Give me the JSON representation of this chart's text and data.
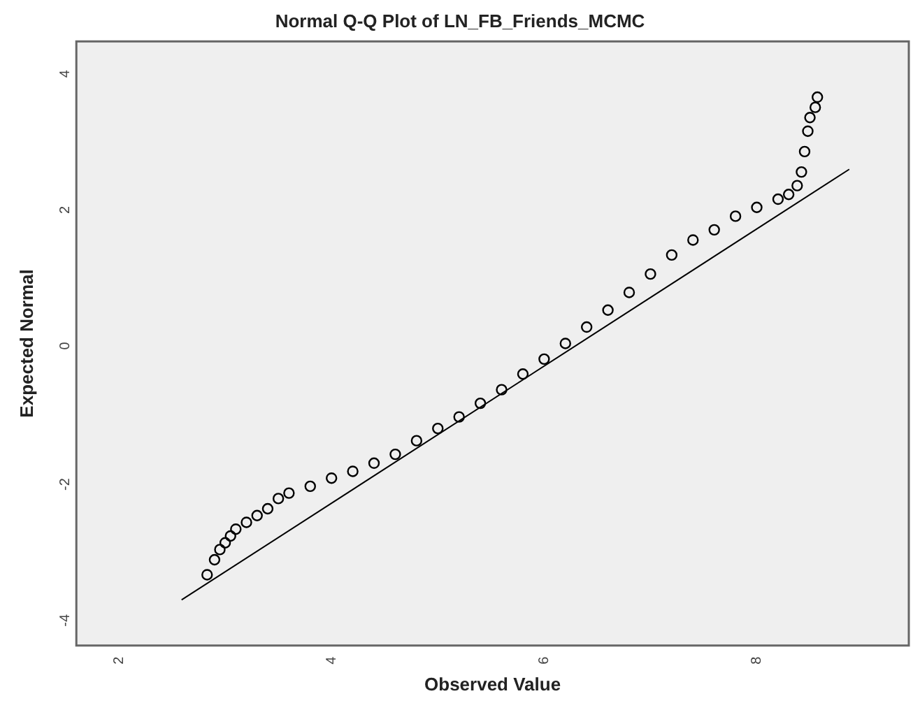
{
  "chart_data": {
    "type": "scatter",
    "title": "Normal Q-Q Plot of LN_FB_Friends_MCMC",
    "xlabel": "Observed Value",
    "ylabel": "Expected Normal",
    "xlim": [
      1.6,
      9.43
    ],
    "xticks": [
      2,
      4,
      6,
      8
    ],
    "ylim": [
      -4.46,
      4.42
    ],
    "yticks": [
      -4,
      -2,
      0,
      2,
      4
    ],
    "grid": false,
    "legend": false,
    "marker": "circle",
    "series": [
      {
        "color": "#000000",
        "x": [
          2.83,
          2.9,
          2.95,
          3.0,
          3.05,
          3.1,
          3.2,
          3.3,
          3.4,
          3.5,
          3.6,
          3.8,
          4.0,
          4.2,
          4.4,
          4.6,
          4.8,
          5.0,
          5.2,
          5.4,
          5.6,
          5.8,
          6.0,
          6.2,
          6.4,
          6.6,
          6.8,
          7.0,
          7.2,
          7.4,
          7.6,
          7.8,
          8.0,
          8.2,
          8.3,
          8.38,
          8.42,
          8.45,
          8.48,
          8.5,
          8.55,
          8.57
        ],
        "values": [
          -3.42,
          -3.2,
          -3.05,
          -2.95,
          -2.85,
          -2.75,
          -2.65,
          -2.55,
          -2.45,
          -2.3,
          -2.22,
          -2.12,
          -2.0,
          -1.9,
          -1.78,
          -1.65,
          -1.45,
          -1.27,
          -1.1,
          -0.9,
          -0.7,
          -0.47,
          -0.25,
          -0.02,
          0.22,
          0.47,
          0.73,
          1.0,
          1.28,
          1.5,
          1.65,
          1.85,
          1.98,
          2.1,
          2.17,
          2.3,
          2.5,
          2.8,
          3.1,
          3.3,
          3.45,
          3.6
        ]
      },
      {
        "type": "line",
        "color": "#000000",
        "line_style": "solid",
        "marker": "none",
        "x": [
          2.59,
          8.87
        ],
        "values": [
          -3.79,
          2.54
        ]
      }
    ]
  }
}
